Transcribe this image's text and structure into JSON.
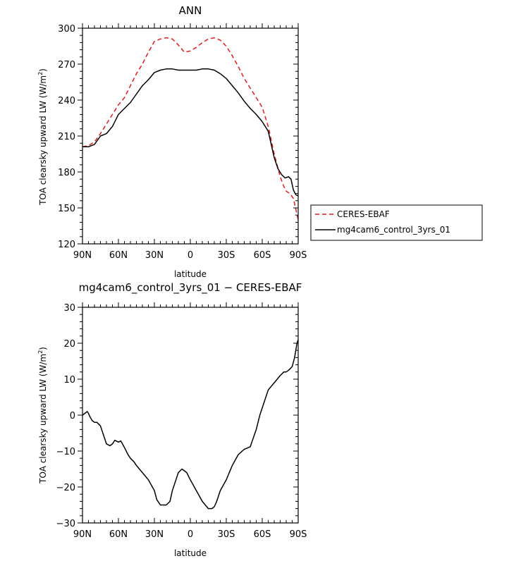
{
  "chart_data": [
    {
      "type": "line",
      "title": "ANN",
      "xlabel": "latitude",
      "ylabel": "TOA clearsky upward LW (W/m²)",
      "ylabel_main": "TOA clearsky upward LW (W/m",
      "ylabel_sup": "2",
      "ylabel_tail": ")",
      "xlim": [
        -90,
        90
      ],
      "ylim": [
        120,
        300
      ],
      "xticks": [
        -90,
        -60,
        -30,
        0,
        30,
        60,
        90
      ],
      "xtick_labels": [
        "90N",
        "60N",
        "30N",
        "0",
        "30S",
        "60S",
        "90S"
      ],
      "yticks": [
        120,
        150,
        180,
        210,
        240,
        270,
        300
      ],
      "ytick_labels": [
        "120",
        "150",
        "180",
        "210",
        "240",
        "270",
        "300"
      ],
      "legend": [
        "CERES-EBAF",
        "mg4cam6_control_3yrs_01"
      ],
      "legend_position": "right",
      "series": [
        {
          "name": "CERES-EBAF",
          "color": "#e41a1c",
          "style": "dashed",
          "x": [
            -90,
            -85,
            -80,
            -75,
            -70,
            -65,
            -60,
            -55,
            -50,
            -45,
            -40,
            -35,
            -30,
            -25,
            -20,
            -15,
            -10,
            -5,
            0,
            5,
            10,
            15,
            20,
            25,
            30,
            35,
            40,
            45,
            50,
            55,
            60,
            65,
            70,
            75,
            78,
            80,
            83,
            86,
            88,
            90
          ],
          "values": [
            201,
            202,
            205,
            212,
            220,
            228,
            236,
            242,
            252,
            262,
            270,
            280,
            289,
            291,
            292,
            291,
            286,
            280,
            281,
            284,
            288,
            291,
            292,
            290,
            285,
            277,
            268,
            258,
            250,
            242,
            234,
            218,
            195,
            176,
            168,
            164,
            162,
            158,
            149,
            140
          ]
        },
        {
          "name": "mg4cam6_control_3yrs_01",
          "color": "#000000",
          "style": "solid",
          "x": [
            -90,
            -85,
            -80,
            -75,
            -70,
            -65,
            -60,
            -55,
            -50,
            -45,
            -40,
            -35,
            -30,
            -25,
            -20,
            -15,
            -10,
            -5,
            0,
            5,
            10,
            15,
            20,
            25,
            30,
            35,
            40,
            45,
            50,
            55,
            60,
            65,
            70,
            73,
            76,
            79,
            82,
            84,
            86,
            88,
            90
          ],
          "values": [
            201,
            201,
            203,
            210,
            212,
            218,
            228,
            233,
            238,
            245,
            252,
            257,
            263,
            265,
            266,
            266,
            265,
            265,
            265,
            265,
            266,
            266,
            265,
            262,
            258,
            252,
            246,
            239,
            233,
            228,
            222,
            214,
            192,
            183,
            178,
            175,
            176,
            174,
            165,
            161,
            160
          ]
        }
      ]
    },
    {
      "type": "line",
      "title": "mg4cam6_control_3yrs_01 − CERES-EBAF",
      "xlabel": "latitude",
      "ylabel": "TOA clearsky upward LW (W/m²)",
      "ylabel_main": "TOA clearsky upward LW (W/m",
      "ylabel_sup": "2",
      "ylabel_tail": ")",
      "xlim": [
        -90,
        90
      ],
      "ylim": [
        -30,
        30
      ],
      "xticks": [
        -90,
        -60,
        -30,
        0,
        30,
        60,
        90
      ],
      "xtick_labels": [
        "90N",
        "60N",
        "30N",
        "0",
        "30S",
        "60S",
        "90S"
      ],
      "yticks": [
        -30,
        -20,
        -10,
        0,
        10,
        20,
        30
      ],
      "ytick_labels": [
        "−30",
        "−20",
        "−10",
        "0",
        "10",
        "20",
        "30"
      ],
      "series": [
        {
          "name": "difference",
          "color": "#000000",
          "style": "solid",
          "x": [
            -90,
            -88,
            -86,
            -85,
            -84,
            -82,
            -80,
            -78,
            -75,
            -73,
            -70,
            -67,
            -65,
            -63,
            -60,
            -58,
            -55,
            -52,
            -50,
            -47,
            -45,
            -40,
            -35,
            -30,
            -28,
            -25,
            -22,
            -20,
            -17,
            -15,
            -12,
            -10,
            -7,
            -5,
            -3,
            0,
            5,
            10,
            15,
            18,
            20,
            22,
            25,
            30,
            35,
            40,
            45,
            50,
            55,
            58,
            60,
            62,
            65,
            70,
            75,
            78,
            80,
            82,
            85,
            87,
            88,
            89,
            90
          ],
          "values": [
            0,
            0.5,
            1,
            0.5,
            -0.3,
            -1.5,
            -2,
            -2,
            -3,
            -5,
            -8,
            -8.5,
            -8,
            -7,
            -7.5,
            -7.2,
            -9,
            -11,
            -12,
            -13,
            -14,
            -16,
            -18,
            -21,
            -23.5,
            -25,
            -25,
            -25,
            -24,
            -21,
            -18,
            -16,
            -15,
            -15.5,
            -16,
            -18,
            -21,
            -24,
            -26,
            -26,
            -25.5,
            -24,
            -21,
            -18,
            -14,
            -11,
            -9.5,
            -8.8,
            -4,
            0,
            2,
            4,
            7,
            9,
            11,
            12,
            12,
            12.5,
            13.5,
            16,
            18,
            20,
            21
          ]
        }
      ]
    }
  ]
}
